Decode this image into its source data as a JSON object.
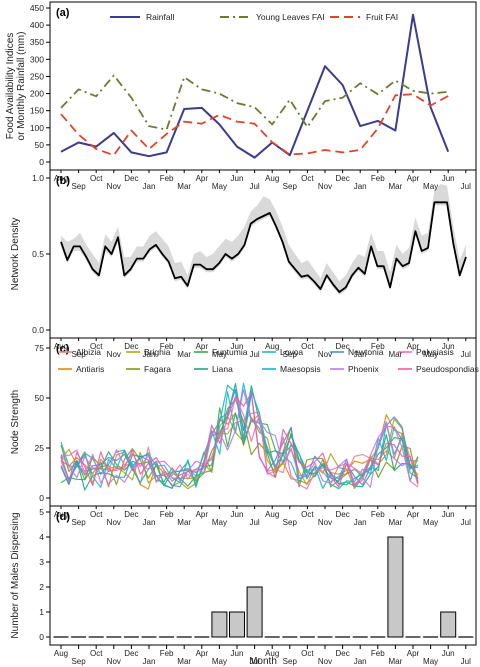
{
  "figure": {
    "xlabel": "Month",
    "months": [
      "Aug",
      "Sep",
      "Oct",
      "Nov",
      "Dec",
      "Jan",
      "Feb",
      "Mar",
      "Apr",
      "May",
      "Jun",
      "Jul",
      "Aug",
      "Sep",
      "Oct",
      "Nov",
      "Dec",
      "Jan",
      "Feb",
      "Mar",
      "Apr",
      "May",
      "Jun",
      "Jul"
    ]
  },
  "chart_data": [
    {
      "panel": "(a)",
      "type": "line",
      "ylabel": "Food Availability Indices\nor Monthly Rainfall (mm)",
      "ylim": [
        0,
        450
      ],
      "yticks": [
        0,
        50,
        100,
        150,
        200,
        250,
        300,
        350,
        400,
        450
      ],
      "legend_placement": "top",
      "series": [
        {
          "name": "Rainfall",
          "color": "#3b3b8f",
          "dash": "solid",
          "values": [
            30,
            57,
            45,
            85,
            28,
            17,
            28,
            155,
            158,
            110,
            45,
            13,
            57,
            20,
            150,
            280,
            225,
            105,
            120,
            92,
            430,
            160,
            30
          ]
        },
        {
          "name": "Young Leaves FAI",
          "color": "#6b7b2f",
          "dash": "dashdot",
          "values": [
            158,
            212,
            192,
            253,
            188,
            105,
            95,
            248,
            212,
            200,
            172,
            160,
            110,
            182,
            102,
            178,
            188,
            230,
            198,
            238,
            208,
            200,
            205
          ]
        },
        {
          "name": "Fruit FAI",
          "color": "#e0452b",
          "dash": "dashed",
          "values": [
            140,
            80,
            38,
            20,
            92,
            38,
            82,
            118,
            112,
            138,
            118,
            112,
            58,
            22,
            25,
            35,
            28,
            35,
            98,
            195,
            198,
            165,
            193
          ]
        }
      ]
    },
    {
      "panel": "(b)",
      "type": "line",
      "ylabel": "Network Density",
      "ylim": [
        0,
        1
      ],
      "yticks": [
        0.0,
        0.5,
        1.0
      ],
      "ytick_labels": [
        "0.0",
        "0.5",
        "1.0"
      ],
      "series": [
        {
          "name": "",
          "color": "#000000",
          "values": [
            0.58,
            0.46,
            0.55,
            0.55,
            0.48,
            0.4,
            0.36,
            0.55,
            0.5,
            0.61,
            0.36,
            0.4,
            0.47,
            0.47,
            0.53,
            0.56,
            0.5,
            0.45,
            0.34,
            0.35,
            0.29,
            0.43,
            0.43,
            0.4,
            0.4,
            0.44,
            0.5,
            0.47,
            0.5,
            0.56,
            0.7,
            0.73,
            0.75,
            0.77,
            0.68,
            0.58,
            0.45,
            0.4,
            0.35,
            0.36,
            0.32,
            0.27,
            0.36,
            0.3,
            0.25,
            0.28,
            0.36,
            0.41,
            0.37,
            0.55,
            0.42,
            0.42,
            0.28,
            0.47,
            0.42,
            0.44,
            0.65,
            0.52,
            0.54,
            0.84,
            0.84,
            0.84,
            0.57,
            0.36,
            0.48
          ]
        },
        {
          "name": "",
          "color": "#d9d9d9",
          "band": true,
          "upper": [
            0.62,
            0.58,
            0.6,
            0.64,
            0.56,
            0.5,
            0.44,
            0.63,
            0.58,
            0.68,
            0.48,
            0.48,
            0.55,
            0.55,
            0.62,
            0.65,
            0.6,
            0.55,
            0.44,
            0.45,
            0.36,
            0.5,
            0.52,
            0.48,
            0.5,
            0.55,
            0.6,
            0.58,
            0.62,
            0.68,
            0.78,
            0.82,
            0.88,
            0.86,
            0.78,
            0.68,
            0.56,
            0.5,
            0.44,
            0.46,
            0.4,
            0.34,
            0.44,
            0.38,
            0.32,
            0.36,
            0.44,
            0.5,
            0.48,
            0.64,
            0.52,
            0.52,
            0.38,
            0.56,
            0.5,
            0.54,
            0.74,
            0.62,
            0.64,
            0.92,
            0.96,
            0.95,
            0.68,
            0.46,
            0.56
          ],
          "lower": [
            0.55,
            0.44,
            0.52,
            0.52,
            0.46,
            0.38,
            0.34,
            0.52,
            0.48,
            0.58,
            0.34,
            0.38,
            0.45,
            0.45,
            0.51,
            0.54,
            0.48,
            0.43,
            0.32,
            0.33,
            0.27,
            0.41,
            0.41,
            0.38,
            0.38,
            0.42,
            0.48,
            0.45,
            0.48,
            0.54,
            0.68,
            0.71,
            0.73,
            0.75,
            0.66,
            0.56,
            0.43,
            0.38,
            0.33,
            0.34,
            0.3,
            0.25,
            0.34,
            0.28,
            0.23,
            0.26,
            0.34,
            0.39,
            0.35,
            0.53,
            0.4,
            0.4,
            0.26,
            0.45,
            0.4,
            0.42,
            0.63,
            0.5,
            0.52,
            0.82,
            0.82,
            0.82,
            0.55,
            0.34,
            0.46
          ]
        }
      ]
    },
    {
      "panel": "(c)",
      "type": "line",
      "ylabel": "Node Strength",
      "ylim": [
        0,
        75
      ],
      "yticks": [
        0,
        25,
        50,
        75
      ],
      "legend_placement": "top-right",
      "series": [
        {
          "name": "Albizia",
          "color": "#f0808a"
        },
        {
          "name": "Antiaris",
          "color": "#d98a12"
        },
        {
          "name": "Brighia",
          "color": "#b3a512"
        },
        {
          "name": "Fagara",
          "color": "#7c9a1a"
        },
        {
          "name": "Funtumia",
          "color": "#2fb34a"
        },
        {
          "name": "Liana",
          "color": "#1aa88a"
        },
        {
          "name": "Lovoa",
          "color": "#1fb8c8"
        },
        {
          "name": "Maesopsis",
          "color": "#18b4c0"
        },
        {
          "name": "Newtonia",
          "color": "#4a8fe0"
        },
        {
          "name": "Phoenix",
          "color": "#b77be8"
        },
        {
          "name": "Polysiasis",
          "color": "#e46fd8"
        },
        {
          "name": "Pseudospondias",
          "color": "#f05aa8"
        }
      ]
    },
    {
      "panel": "(d)",
      "type": "bar",
      "ylabel": "Number of Males Dispersing",
      "ylim": [
        0,
        5
      ],
      "yticks": [
        0,
        1,
        2,
        3,
        4,
        5
      ],
      "values": [
        0,
        0,
        0,
        0,
        0,
        0,
        0,
        0,
        0,
        1,
        1,
        2,
        0,
        0,
        0,
        0,
        0,
        0,
        0,
        4,
        0,
        0,
        1,
        0
      ],
      "bar_color": "#c8c8c8"
    }
  ]
}
